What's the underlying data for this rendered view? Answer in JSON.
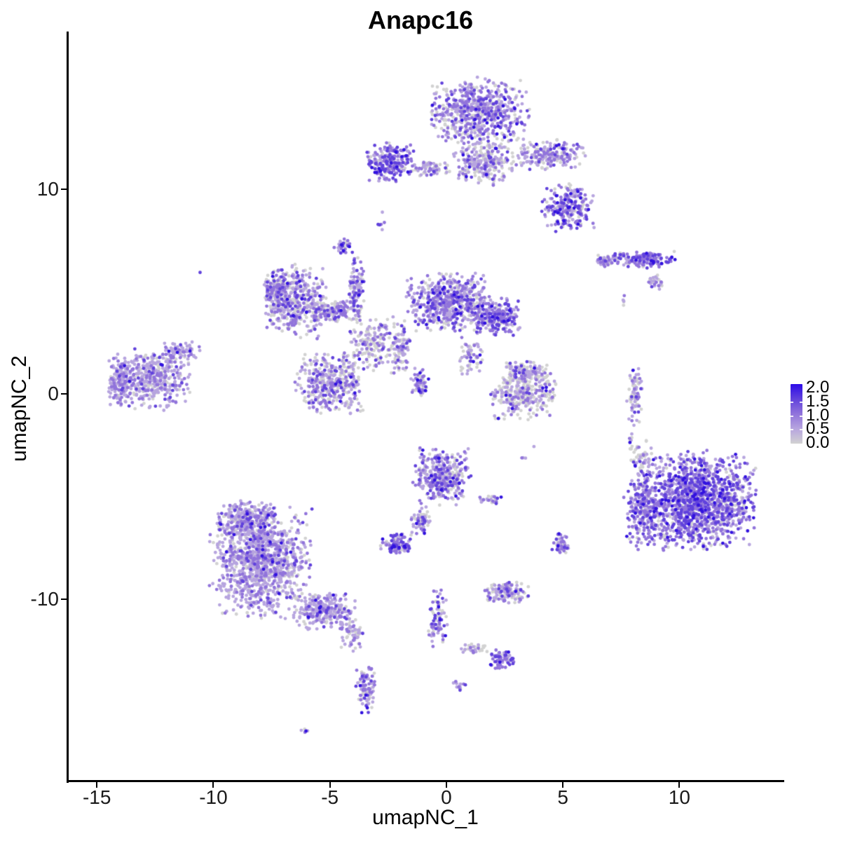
{
  "title": "Anapc16",
  "axes": {
    "x": {
      "label": "umapNC_1",
      "ticks": [
        -15,
        -10,
        -5,
        0,
        5,
        10
      ],
      "range": [
        -16.24,
        14.47
      ]
    },
    "y": {
      "label": "umapNC_2",
      "ticks": [
        -10,
        0,
        10
      ],
      "range": [
        -18.85,
        17.72
      ]
    }
  },
  "legend": {
    "labels": [
      "2.0",
      "1.5",
      "1.0",
      "0.5",
      "0.0"
    ],
    "values": [
      2.0,
      1.5,
      1.0,
      0.5,
      0.0
    ],
    "bar_tick_values": [
      1.5,
      1.0,
      0.5
    ],
    "gradient_low_to_high": [
      "#D2D2D2",
      "#B7A5DF",
      "#9174DB",
      "#6142DC",
      "#2D0CE8"
    ]
  },
  "chart_data": {
    "type": "scatter",
    "title": "Anapc16",
    "xlabel": "umapNC_1",
    "ylabel": "umapNC_2",
    "xlim": [
      -16.24,
      14.47
    ],
    "ylim": [
      -18.85,
      17.72
    ],
    "grid": false,
    "legend_position": "right",
    "color_scale": {
      "low": "#D2D2D2",
      "high": "#2D0CE8",
      "limits": [
        0,
        2
      ]
    },
    "palette": [
      "#D2D2D2",
      "#B7A5DF",
      "#9174DB",
      "#6142DC",
      "#3212DF"
    ],
    "expression_levels": [
      0.0,
      0.5,
      1.0,
      1.5,
      2.0
    ],
    "expression_mixes": {
      "sparse": [
        0.7,
        0.22,
        0.06,
        0.02,
        0.0
      ],
      "grayish": [
        0.55,
        0.28,
        0.12,
        0.04,
        0.01
      ],
      "balanced": [
        0.35,
        0.35,
        0.2,
        0.08,
        0.02
      ],
      "light": [
        0.18,
        0.58,
        0.18,
        0.05,
        0.01
      ],
      "medium": [
        0.22,
        0.33,
        0.3,
        0.12,
        0.03
      ],
      "strong": [
        0.14,
        0.26,
        0.35,
        0.2,
        0.05
      ],
      "vdark": [
        0.0,
        0.0,
        0.0,
        0.1,
        0.9
      ]
    },
    "point_radius_px": 2.4,
    "seed": 1337,
    "clusters": [
      {
        "x": 1.44,
        "y": 13.84,
        "rx": 2.26,
        "ry": 1.72,
        "n": 620,
        "mix": "medium"
      },
      {
        "x": 1.59,
        "y": 11.37,
        "rx": 1.35,
        "ry": 1.2,
        "n": 260,
        "mix": "balanced"
      },
      {
        "x": 4.39,
        "y": 11.71,
        "rx": 1.7,
        "ry": 0.8,
        "n": 210,
        "mix": "balanced"
      },
      {
        "x": 5.26,
        "y": 9.14,
        "rx": 1.2,
        "ry": 1.2,
        "n": 240,
        "mix": "strong"
      },
      {
        "x": -2.38,
        "y": 11.34,
        "rx": 1.15,
        "ry": 1.0,
        "n": 240,
        "mix": "strong"
      },
      {
        "x": -0.63,
        "y": 11.03,
        "rx": 0.95,
        "ry": 0.38,
        "n": 70,
        "mix": "balanced"
      },
      {
        "x": -2.83,
        "y": 8.49,
        "rx": 0.2,
        "ry": 0.55,
        "n": 6,
        "mix": "medium"
      },
      {
        "x": -4.42,
        "y": 7.25,
        "rx": 0.5,
        "ry": 0.4,
        "n": 34,
        "mix": "strong"
      },
      {
        "x": -6.47,
        "y": 4.51,
        "rx": 1.45,
        "ry": 1.85,
        "n": 430,
        "mix": "balanced"
      },
      {
        "x": -7.25,
        "y": 5.06,
        "rx": 0.55,
        "ry": 1.2,
        "n": 130,
        "mix": "medium"
      },
      {
        "x": -4.66,
        "y": 4.03,
        "rx": 1.2,
        "ry": 0.55,
        "n": 140,
        "mix": "balanced"
      },
      {
        "x": -3.85,
        "y": 5.33,
        "rx": 0.42,
        "ry": 1.4,
        "n": 95,
        "mix": "medium"
      },
      {
        "x": -3.16,
        "y": 2.45,
        "rx": 1.2,
        "ry": 1.35,
        "n": 170,
        "mix": "grayish"
      },
      {
        "x": 0.09,
        "y": 4.51,
        "rx": 1.95,
        "ry": 1.55,
        "n": 580,
        "mix": "medium"
      },
      {
        "x": 2.2,
        "y": 3.82,
        "rx": 1.05,
        "ry": 1.0,
        "n": 240,
        "mix": "strong"
      },
      {
        "x": -4.96,
        "y": 0.57,
        "rx": 1.65,
        "ry": 1.55,
        "n": 400,
        "mix": "balanced"
      },
      {
        "x": -1.93,
        "y": 2.18,
        "rx": 0.5,
        "ry": 1.5,
        "n": 90,
        "mix": "balanced"
      },
      {
        "x": -1.11,
        "y": 0.53,
        "rx": 0.45,
        "ry": 0.8,
        "n": 60,
        "mix": "medium"
      },
      {
        "x": 1.05,
        "y": 1.77,
        "rx": 0.6,
        "ry": 1.1,
        "n": 60,
        "mix": "balanced"
      },
      {
        "x": -12.6,
        "y": 0.74,
        "rx": 1.8,
        "ry": 1.55,
        "n": 430,
        "mix": "light"
      },
      {
        "x": -13.99,
        "y": 0.63,
        "rx": 0.6,
        "ry": 1.2,
        "n": 130,
        "mix": "light"
      },
      {
        "x": -11.4,
        "y": 2.11,
        "rx": 0.9,
        "ry": 0.5,
        "n": 70,
        "mix": "light"
      },
      {
        "x": -10.53,
        "y": 5.95,
        "rx": 0.05,
        "ry": 0.05,
        "n": 1,
        "mix": "medium"
      },
      {
        "x": 3.31,
        "y": 0.05,
        "rx": 1.5,
        "ry": 1.3,
        "n": 300,
        "mix": "grayish"
      },
      {
        "x": 3.46,
        "y": 1.05,
        "rx": 1.05,
        "ry": 0.6,
        "n": 110,
        "mix": "grayish"
      },
      {
        "x": 8.09,
        "y": -0.05,
        "rx": 0.35,
        "ry": 1.55,
        "n": 75,
        "mix": "balanced"
      },
      {
        "x": 7.91,
        "y": -2.28,
        "rx": 0.18,
        "ry": 0.45,
        "n": 9,
        "mix": "balanced"
      },
      {
        "x": 7.55,
        "y": 4.51,
        "rx": 0.14,
        "ry": 0.4,
        "n": 5,
        "mix": "grayish"
      },
      {
        "x": 8.51,
        "y": 6.57,
        "rx": 1.35,
        "ry": 0.45,
        "n": 150,
        "mix": "strong"
      },
      {
        "x": 6.89,
        "y": 6.53,
        "rx": 0.6,
        "ry": 0.3,
        "n": 60,
        "mix": "balanced"
      },
      {
        "x": 9.81,
        "y": 6.57,
        "rx": 0.03,
        "ry": 0.03,
        "n": 1,
        "mix": "vdark"
      },
      {
        "x": 9.0,
        "y": 5.47,
        "rx": 0.35,
        "ry": 0.4,
        "n": 25,
        "mix": "balanced"
      },
      {
        "x": 10.62,
        "y": -5.2,
        "rx": 2.85,
        "ry": 2.55,
        "n": 1450,
        "mix": "strong"
      },
      {
        "x": 8.39,
        "y": -5.61,
        "rx": 0.8,
        "ry": 1.9,
        "n": 210,
        "mix": "medium"
      },
      {
        "x": 8.39,
        "y": -2.97,
        "rx": 0.6,
        "ry": 0.85,
        "n": 35,
        "mix": "sparse"
      },
      {
        "x": -7.97,
        "y": -8.18,
        "rx": 2.25,
        "ry": 2.9,
        "n": 1150,
        "mix": "light"
      },
      {
        "x": -5.26,
        "y": -10.58,
        "rx": 1.35,
        "ry": 1.0,
        "n": 260,
        "mix": "light"
      },
      {
        "x": -8.57,
        "y": -6.12,
        "rx": 1.35,
        "ry": 1.0,
        "n": 260,
        "mix": "light"
      },
      {
        "x": -4.12,
        "y": -11.78,
        "rx": 0.55,
        "ry": 0.85,
        "n": 60,
        "mix": "balanced"
      },
      {
        "x": -3.46,
        "y": -14.36,
        "rx": 0.45,
        "ry": 1.35,
        "n": 95,
        "mix": "medium"
      },
      {
        "x": -6.02,
        "y": -16.45,
        "rx": 0.25,
        "ry": 0.15,
        "n": 8,
        "mix": "medium"
      },
      {
        "x": -0.21,
        "y": -4.06,
        "rx": 1.35,
        "ry": 1.5,
        "n": 370,
        "mix": "medium"
      },
      {
        "x": -1.05,
        "y": -6.12,
        "rx": 0.55,
        "ry": 0.8,
        "n": 65,
        "mix": "balanced"
      },
      {
        "x": -2.2,
        "y": -7.32,
        "rx": 0.75,
        "ry": 0.55,
        "n": 95,
        "mix": "strong"
      },
      {
        "x": 1.9,
        "y": -5.16,
        "rx": 0.55,
        "ry": 0.25,
        "n": 25,
        "mix": "balanced"
      },
      {
        "x": 3.34,
        "y": -3.04,
        "rx": 0.12,
        "ry": 0.12,
        "n": 3,
        "mix": "medium"
      },
      {
        "x": -0.36,
        "y": -10.93,
        "rx": 0.45,
        "ry": 1.5,
        "n": 75,
        "mix": "medium"
      },
      {
        "x": 1.17,
        "y": -12.43,
        "rx": 0.65,
        "ry": 0.3,
        "n": 30,
        "mix": "grayish"
      },
      {
        "x": 2.38,
        "y": -12.95,
        "rx": 0.55,
        "ry": 0.5,
        "n": 65,
        "mix": "strong"
      },
      {
        "x": 0.57,
        "y": -14.22,
        "rx": 0.3,
        "ry": 0.35,
        "n": 14,
        "mix": "medium"
      },
      {
        "x": 2.56,
        "y": -9.69,
        "rx": 1.05,
        "ry": 0.55,
        "n": 140,
        "mix": "balanced"
      },
      {
        "x": 4.93,
        "y": -7.29,
        "rx": 0.42,
        "ry": 0.6,
        "n": 48,
        "mix": "medium"
      },
      {
        "x": 3.76,
        "y": -2.52,
        "rx": 0.05,
        "ry": 0.05,
        "n": 1,
        "mix": "medium"
      }
    ]
  }
}
